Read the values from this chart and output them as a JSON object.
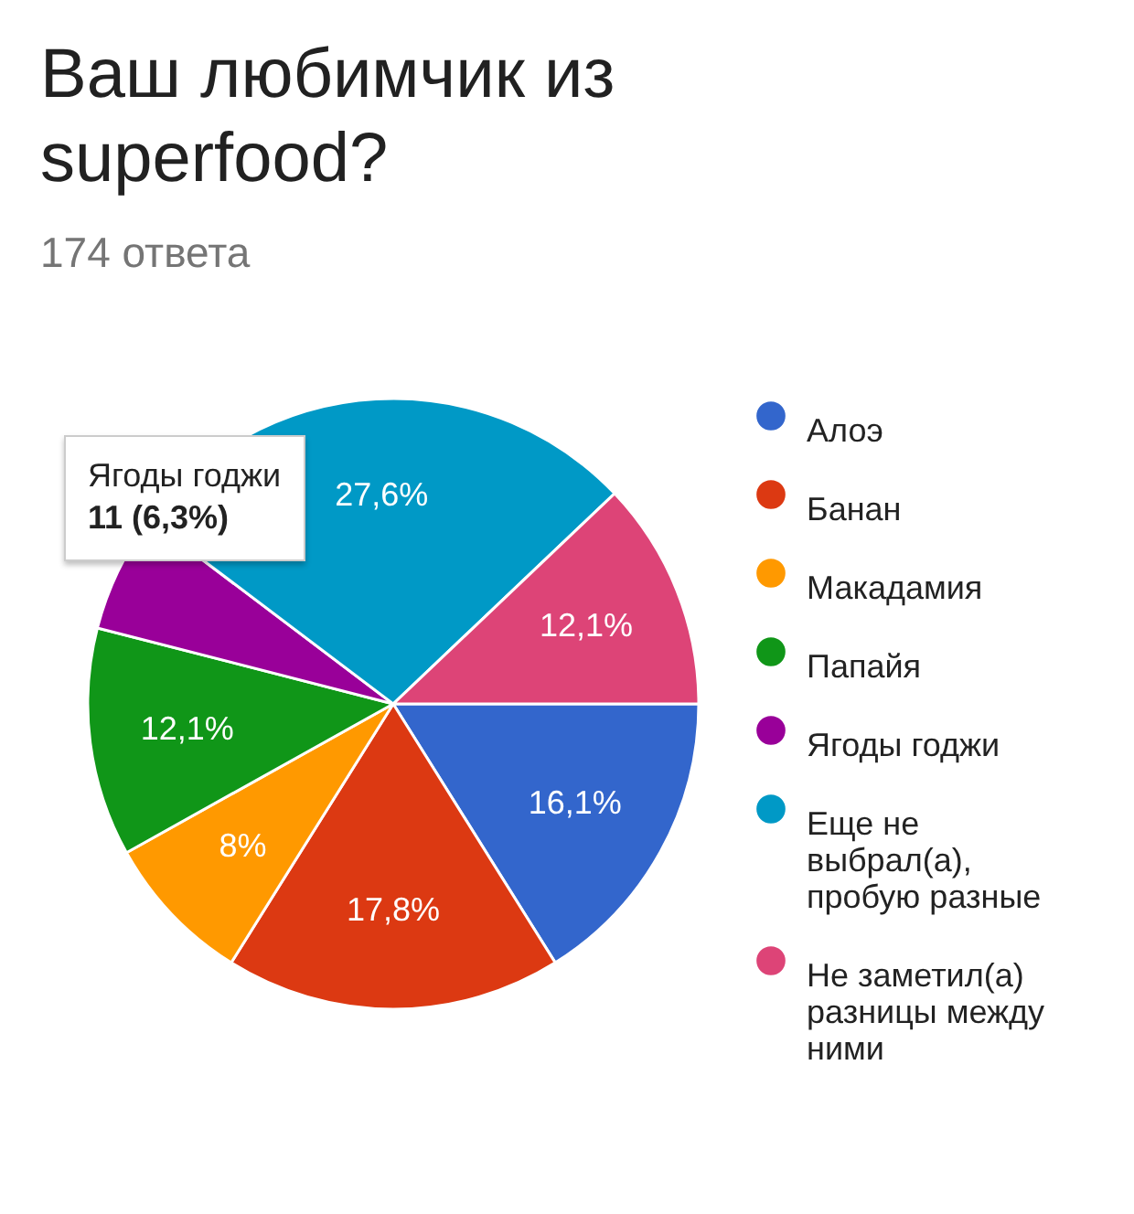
{
  "chart_data": {
    "type": "pie",
    "title": "Ваш любимчик из superfood?",
    "subtitle": "174 ответа",
    "categories": [
      "Алоэ",
      "Банан",
      "Макадамия",
      "Папайя",
      "Ягоды годжи",
      "Еще не выбрал(а), пробую разные",
      "Не заметил(а) разницы между ними"
    ],
    "values": [
      16.1,
      17.8,
      8,
      12.1,
      6.3,
      27.6,
      12.1
    ],
    "colors": [
      "#3366cc",
      "#dc3912",
      "#ff9900",
      "#109618",
      "#990099",
      "#0099c6",
      "#dd4477"
    ],
    "value_labels": [
      "16,1%",
      "17,8%",
      "8%",
      "12,1%",
      null,
      "27,6%",
      "12,1%"
    ],
    "annotations": [
      "Ягоды годжи",
      "11 (6,3%)"
    ],
    "legend": "right"
  }
}
